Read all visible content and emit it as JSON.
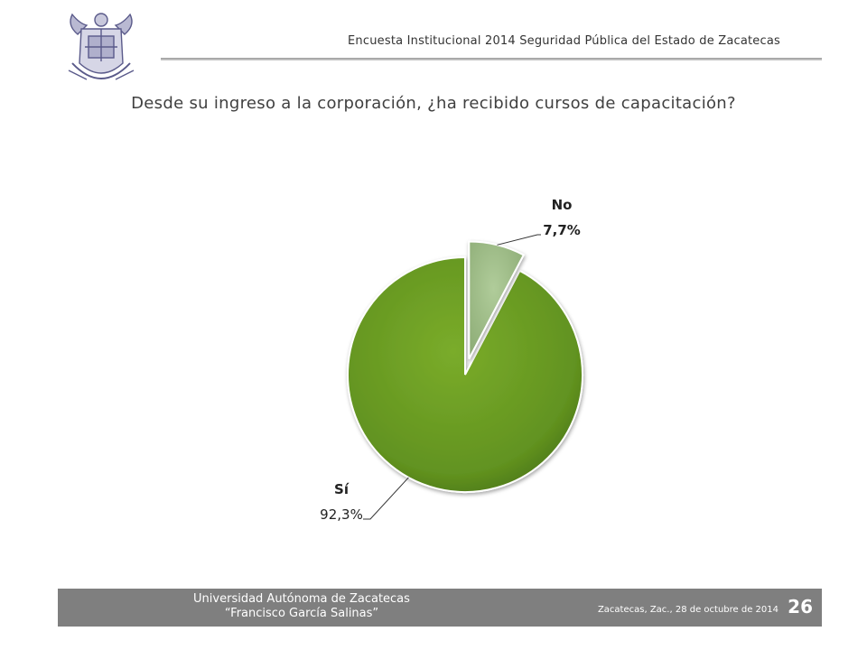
{
  "header": {
    "logo_icon": "university-coat-of-arms-icon",
    "survey_title": "Encuesta Institucional 2014 Seguridad Pública del Estado de Zacatecas"
  },
  "question": "Desde su ingreso a la corporación, ¿ha recibido cursos de capacitación?",
  "chart_data": {
    "type": "pie",
    "title": "",
    "slices": [
      {
        "label": "Sí",
        "value": 92.3,
        "value_label": "92,3%",
        "color": "#6a9a23",
        "exploded": false
      },
      {
        "label": "No",
        "value": 7.7,
        "value_label": "7,7%",
        "color": "#9dbb86",
        "exploded": true
      }
    ]
  },
  "footer": {
    "university_line1": "Universidad Autónoma de Zacatecas",
    "university_line2": "“Francisco García Salinas”",
    "place_date": "Zacatecas, Zac., 28 de octubre de 2014",
    "page_number": "26",
    "bar_color": "#7f7f7f"
  }
}
